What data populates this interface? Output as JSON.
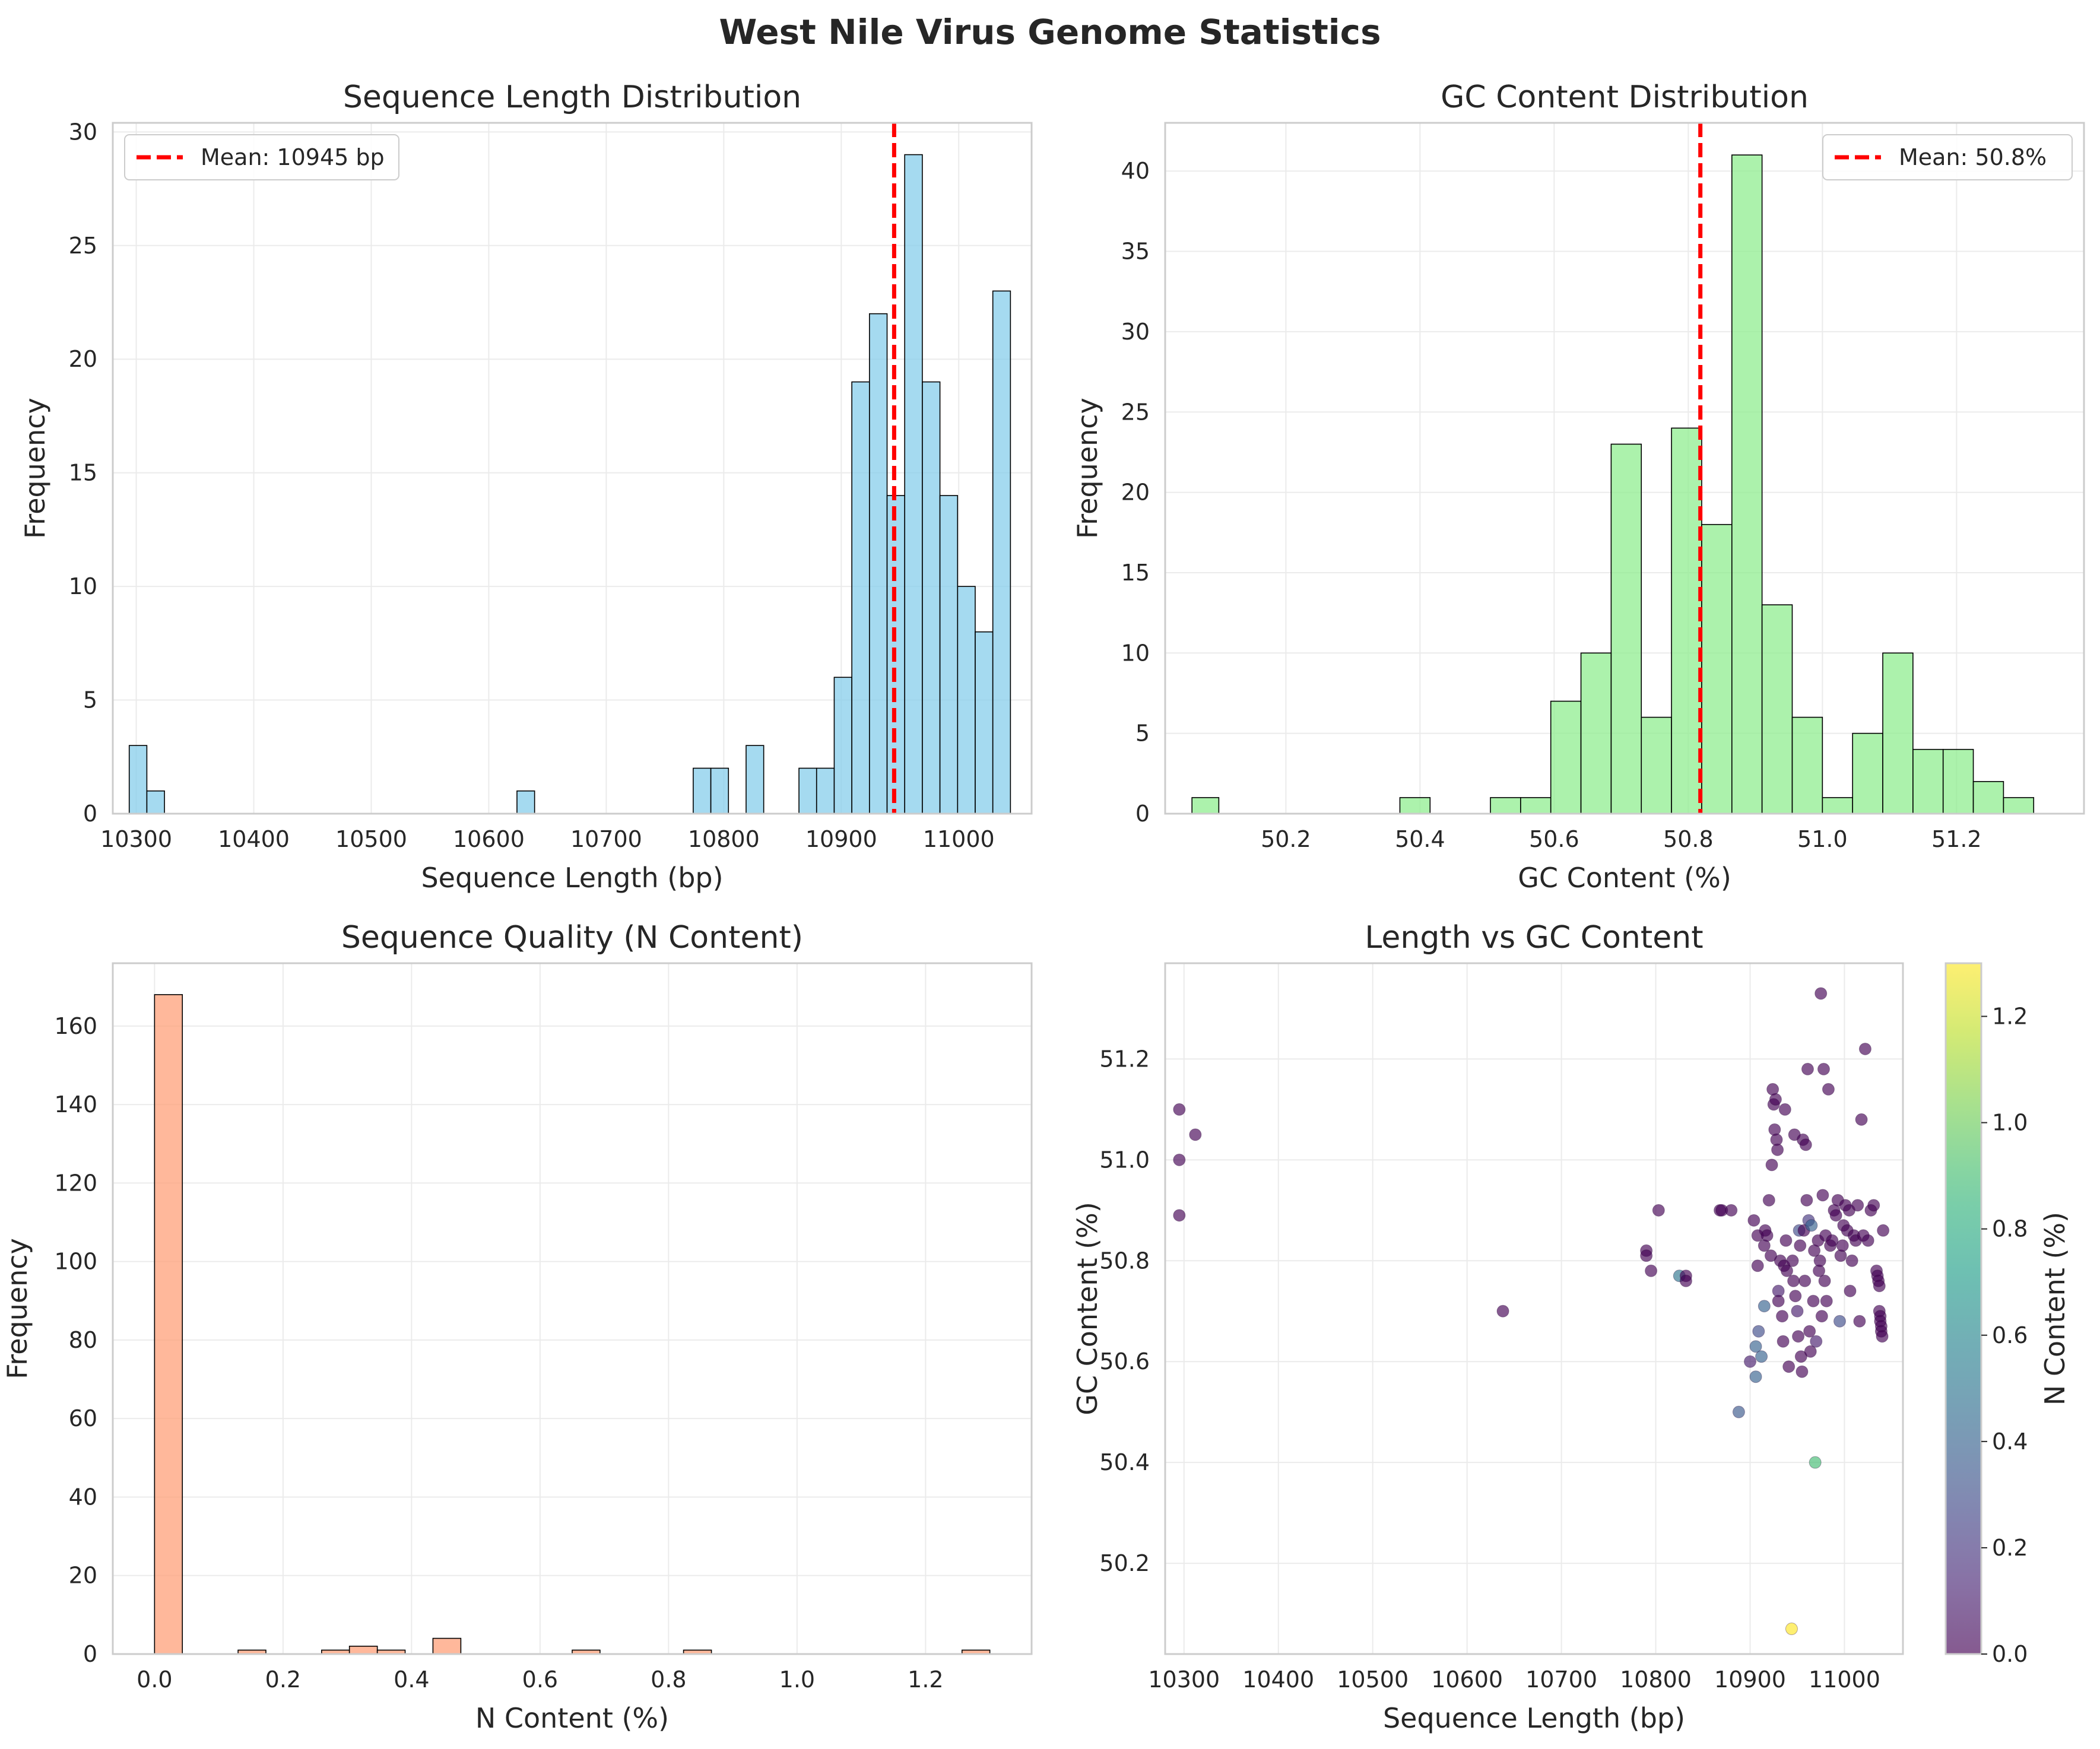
{
  "suptitle": "West Nile Virus Genome Statistics",
  "colors": {
    "length_bar": "#87ceeb",
    "gc_bar": "#90ee90",
    "n_bar": "#ffa07a",
    "mean_line": "#ff0000",
    "grid": "#ebebeb",
    "spine": "#cccccc",
    "bar_edge": "#000000"
  },
  "chart_data": [
    {
      "type": "bar",
      "subtype": "histogram",
      "title": "Sequence Length Distribution",
      "xlabel": "Sequence Length (bp)",
      "ylabel": "Frequency",
      "xlim": [
        10280,
        11062
      ],
      "ylim": [
        0,
        30.4
      ],
      "xticks": [
        10300,
        10400,
        10500,
        10600,
        10700,
        10800,
        10900,
        11000
      ],
      "yticks": [
        0,
        5,
        10,
        15,
        20,
        25,
        30
      ],
      "grid": true,
      "legend": "upper left",
      "bin_edges": [
        10294,
        10309,
        10324,
        10339,
        10354,
        10369,
        10384,
        10399,
        10414,
        10429,
        10444,
        10459,
        10474,
        10489,
        10504,
        10519,
        10534,
        10549,
        10564,
        10579,
        10594,
        10609,
        10624,
        10639,
        10654,
        10669,
        10684,
        10699,
        10714,
        10729,
        10744,
        10759,
        10774,
        10789,
        10804,
        10819,
        10834,
        10849,
        10864,
        10879,
        10894,
        10909,
        10924,
        10939,
        10954,
        10969,
        10984,
        10999,
        11014,
        11029,
        11044
      ],
      "values": [
        3,
        1,
        0,
        0,
        0,
        0,
        0,
        0,
        0,
        0,
        0,
        0,
        0,
        0,
        0,
        0,
        0,
        0,
        0,
        0,
        0,
        0,
        1,
        0,
        0,
        0,
        0,
        0,
        0,
        0,
        0,
        0,
        2,
        2,
        0,
        3,
        0,
        0,
        2,
        2,
        6,
        19,
        22,
        14,
        29,
        19,
        14,
        10,
        8,
        23
      ],
      "mean_line": {
        "value": 10945,
        "label": "Mean: 10945 bp"
      }
    },
    {
      "type": "bar",
      "subtype": "histogram",
      "title": "GC Content Distribution",
      "xlabel": "GC Content (%)",
      "ylabel": "Frequency",
      "xlim": [
        50.02,
        51.39
      ],
      "ylim": [
        0,
        43
      ],
      "xticks": [
        50.2,
        50.4,
        50.6,
        50.8,
        51.0,
        51.2
      ],
      "xticklabels": [
        "50.2",
        "50.4",
        "50.6",
        "50.8",
        "51.0",
        "51.2"
      ],
      "yticks": [
        0,
        5,
        10,
        15,
        20,
        25,
        30,
        35,
        40
      ],
      "grid": true,
      "legend": "upper right",
      "bin_edges": [
        50.06,
        50.1,
        50.145,
        50.19,
        50.235,
        50.28,
        50.325,
        50.37,
        50.415,
        50.46,
        50.505,
        50.55,
        50.595,
        50.64,
        50.685,
        50.73,
        50.775,
        50.82,
        50.865,
        50.91,
        50.955,
        51.0,
        51.045,
        51.09,
        51.135,
        51.18,
        51.225,
        51.27,
        51.315,
        51.36
      ],
      "values": [
        1,
        0,
        0,
        0,
        0,
        0,
        0,
        1,
        0,
        0,
        1,
        1,
        7,
        10,
        23,
        6,
        24,
        18,
        41,
        13,
        6,
        1,
        5,
        10,
        4,
        4,
        2,
        1,
        0,
        1
      ],
      "mean_line": {
        "value": 50.818,
        "label": "Mean: 50.8%"
      }
    },
    {
      "type": "bar",
      "subtype": "histogram",
      "title": "Sequence Quality (N Content)",
      "xlabel": "N Content (%)",
      "ylabel": "Frequency",
      "xlim": [
        -0.065,
        1.365
      ],
      "ylim": [
        0,
        176
      ],
      "xticks": [
        0.0,
        0.2,
        0.4,
        0.6,
        0.8,
        1.0,
        1.2
      ],
      "xticklabels": [
        "0.0",
        "0.2",
        "0.4",
        "0.6",
        "0.8",
        "1.0",
        "1.2"
      ],
      "yticks": [
        0,
        20,
        40,
        60,
        80,
        100,
        120,
        140,
        160
      ],
      "grid": true,
      "bin_edges": [
        0.0,
        0.0433,
        0.0867,
        0.13,
        0.1733,
        0.2167,
        0.26,
        0.3033,
        0.3467,
        0.39,
        0.4333,
        0.4767,
        0.52,
        0.5633,
        0.6067,
        0.65,
        0.6933,
        0.7367,
        0.78,
        0.8233,
        0.8667,
        0.91,
        0.9533,
        0.9967,
        1.04,
        1.0833,
        1.1267,
        1.17,
        1.2133,
        1.2567,
        1.3
      ],
      "values": [
        168,
        0,
        0,
        1,
        0,
        0,
        1,
        2,
        1,
        0,
        4,
        0,
        0,
        0,
        0,
        1,
        0,
        0,
        0,
        1,
        0,
        0,
        0,
        0,
        0,
        0,
        0,
        0,
        0,
        1
      ]
    },
    {
      "type": "scatter",
      "title": "Length vs GC Content",
      "xlabel": "Sequence Length (bp)",
      "ylabel": "GC Content (%)",
      "xlim": [
        10280,
        11062
      ],
      "ylim": [
        50.02,
        51.39
      ],
      "xticks": [
        10300,
        10400,
        10500,
        10600,
        10700,
        10800,
        10900,
        11000
      ],
      "yticks": [
        50.2,
        50.4,
        50.6,
        50.8,
        51.0,
        51.2
      ],
      "yticklabels": [
        "50.2",
        "50.4",
        "50.6",
        "50.8",
        "51.0",
        "51.2"
      ],
      "grid": true,
      "colormap": "viridis",
      "colorbar": {
        "label": "N Content (%)",
        "range": [
          0,
          1.3
        ],
        "ticks": [
          0.0,
          0.2,
          0.4,
          0.6,
          0.8,
          1.0,
          1.2
        ],
        "ticklabels": [
          "0.0",
          "0.2",
          "0.4",
          "0.6",
          "0.8",
          "1.0",
          "1.2"
        ]
      },
      "points": [
        [
          10295,
          51.1,
          0
        ],
        [
          10295,
          51.0,
          0
        ],
        [
          10295,
          50.89,
          0
        ],
        [
          10312,
          51.05,
          0
        ],
        [
          10638,
          50.7,
          0
        ],
        [
          10790,
          50.82,
          0
        ],
        [
          10790,
          50.81,
          0
        ],
        [
          10795,
          50.78,
          0
        ],
        [
          10803,
          50.9,
          0
        ],
        [
          10825,
          50.77,
          0.5
        ],
        [
          10832,
          50.77,
          0
        ],
        [
          10832,
          50.76,
          0
        ],
        [
          10868,
          50.9,
          0
        ],
        [
          10870,
          50.9,
          0
        ],
        [
          10888,
          50.5,
          0.35
        ],
        [
          10880,
          50.9,
          0
        ],
        [
          10900,
          50.6,
          0.1
        ],
        [
          10904,
          50.88,
          0
        ],
        [
          10906,
          50.63,
          0.4
        ],
        [
          10906,
          50.57,
          0.4
        ],
        [
          10908,
          50.85,
          0
        ],
        [
          10908,
          50.79,
          0
        ],
        [
          10909,
          50.66,
          0.3
        ],
        [
          10912,
          50.61,
          0.4
        ],
        [
          10915,
          50.71,
          0.4
        ],
        [
          10915,
          50.83,
          0
        ],
        [
          10916,
          50.86,
          0
        ],
        [
          10918,
          50.85,
          0
        ],
        [
          10920,
          50.92,
          0
        ],
        [
          10922,
          50.81,
          0
        ],
        [
          10923,
          50.99,
          0
        ],
        [
          10924,
          51.14,
          0
        ],
        [
          10925,
          51.11,
          0
        ],
        [
          10926,
          51.06,
          0
        ],
        [
          10927,
          51.12,
          0
        ],
        [
          10928,
          51.04,
          0
        ],
        [
          10929,
          51.02,
          0
        ],
        [
          10930,
          50.74,
          0.1
        ],
        [
          10930,
          50.72,
          0
        ],
        [
          10932,
          50.8,
          0
        ],
        [
          10934,
          50.69,
          0
        ],
        [
          10935,
          50.64,
          0
        ],
        [
          10936,
          50.79,
          0
        ],
        [
          10937,
          51.1,
          0
        ],
        [
          10938,
          50.84,
          0
        ],
        [
          10939,
          50.78,
          0
        ],
        [
          10941,
          50.59,
          0
        ],
        [
          10944,
          50.07,
          1.3
        ],
        [
          10945,
          50.8,
          0
        ],
        [
          10946,
          50.76,
          0
        ],
        [
          10947,
          51.05,
          0
        ],
        [
          10948,
          50.73,
          0
        ],
        [
          10950,
          50.7,
          0.1
        ],
        [
          10951,
          50.65,
          0
        ],
        [
          10952,
          50.86,
          0.3
        ],
        [
          10953,
          50.83,
          0
        ],
        [
          10954,
          50.61,
          0
        ],
        [
          10955,
          50.58,
          0
        ],
        [
          10956,
          51.04,
          0
        ],
        [
          10957,
          50.86,
          0
        ],
        [
          10958,
          50.76,
          0
        ],
        [
          10959,
          51.03,
          0
        ],
        [
          10960,
          50.92,
          0
        ],
        [
          10961,
          51.18,
          0
        ],
        [
          10962,
          50.88,
          0.2
        ],
        [
          10963,
          50.66,
          0
        ],
        [
          10964,
          50.62,
          0
        ],
        [
          10965,
          50.87,
          0.4
        ],
        [
          10967,
          50.72,
          0
        ],
        [
          10968,
          50.82,
          0
        ],
        [
          10969,
          50.4,
          0.9
        ],
        [
          10970,
          50.64,
          0.1
        ],
        [
          10972,
          50.84,
          0
        ],
        [
          10973,
          50.78,
          0
        ],
        [
          10974,
          50.8,
          0
        ],
        [
          10975,
          51.33,
          0
        ],
        [
          10976,
          50.69,
          0
        ],
        [
          10977,
          50.93,
          0
        ],
        [
          10978,
          51.18,
          0
        ],
        [
          10979,
          50.76,
          0
        ],
        [
          10980,
          50.85,
          0
        ],
        [
          10981,
          50.72,
          0
        ],
        [
          10983,
          51.14,
          0
        ],
        [
          10985,
          50.83,
          0
        ],
        [
          10987,
          50.84,
          0
        ],
        [
          10989,
          50.9,
          0
        ],
        [
          10991,
          50.89,
          0
        ],
        [
          10993,
          50.92,
          0
        ],
        [
          10995,
          50.68,
          0.3
        ],
        [
          10996,
          50.81,
          0
        ],
        [
          10998,
          50.83,
          0
        ],
        [
          10999,
          50.87,
          0
        ],
        [
          11001,
          50.91,
          0
        ],
        [
          11003,
          50.86,
          0
        ],
        [
          11005,
          50.9,
          0
        ],
        [
          11006,
          50.74,
          0
        ],
        [
          11008,
          50.8,
          0
        ],
        [
          11010,
          50.85,
          0
        ],
        [
          11012,
          50.84,
          0
        ],
        [
          11014,
          50.91,
          0
        ],
        [
          11016,
          50.68,
          0
        ],
        [
          11018,
          51.08,
          0
        ],
        [
          11020,
          50.85,
          0
        ],
        [
          11022,
          51.22,
          0
        ],
        [
          11025,
          50.84,
          0
        ],
        [
          11028,
          50.9,
          0
        ],
        [
          11031,
          50.91,
          0
        ],
        [
          11034,
          50.78,
          0
        ],
        [
          11035,
          50.77,
          0
        ],
        [
          11036,
          50.76,
          0
        ],
        [
          11037,
          50.75,
          0
        ],
        [
          11037,
          50.7,
          0
        ],
        [
          11038,
          50.69,
          0
        ],
        [
          11038,
          50.68,
          0
        ],
        [
          11039,
          50.67,
          0
        ],
        [
          11039,
          50.66,
          0
        ],
        [
          11040,
          50.65,
          0
        ],
        [
          11041,
          50.86,
          0
        ]
      ]
    }
  ]
}
